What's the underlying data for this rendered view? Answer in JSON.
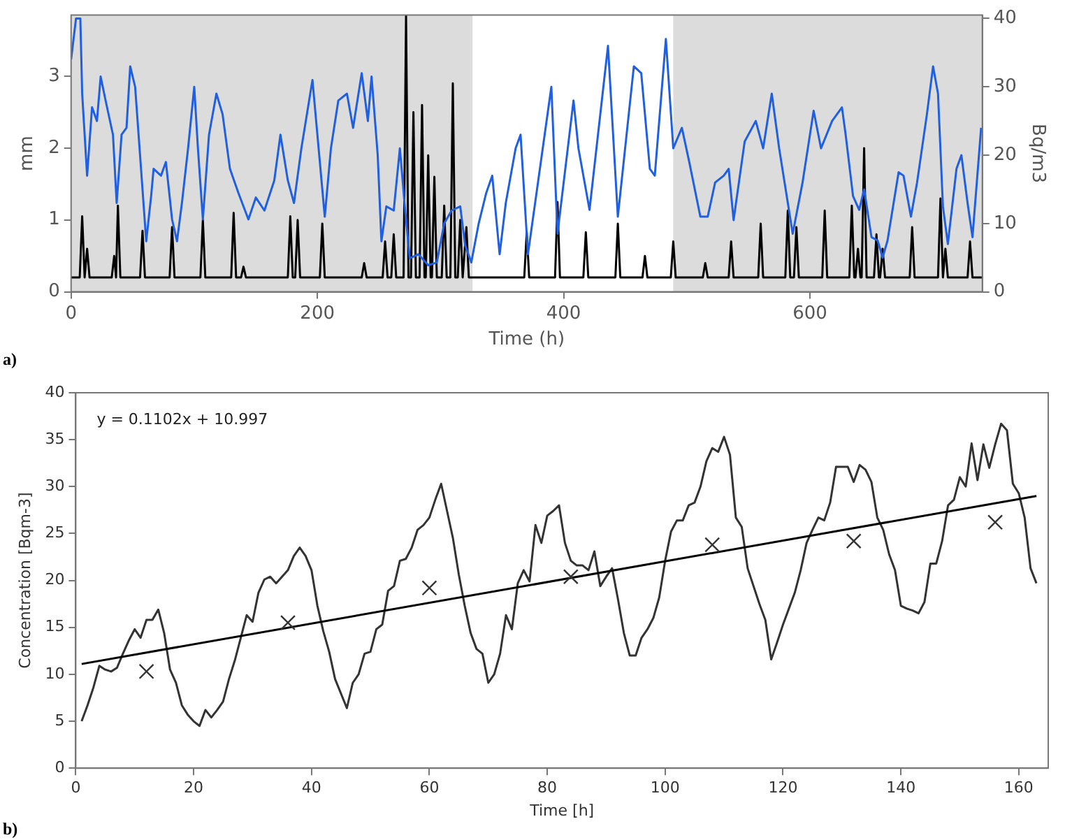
{
  "chart_data": [
    {
      "type": "line",
      "xlabel": "Time (h)",
      "ylabel": "mm",
      "y2label": "Bq/m3",
      "annotations": [
        "a)"
      ],
      "marker": "none",
      "xlim": [
        0,
        740
      ],
      "xticks": [
        0,
        200,
        400,
        600
      ],
      "ylim": [
        0,
        3.85
      ],
      "yticks": [
        0,
        1,
        2,
        3
      ],
      "y2lim": [
        0,
        40.5
      ],
      "y2ticks": [
        0,
        10,
        20,
        30,
        40
      ],
      "bands": [
        {
          "axis": "x",
          "from": 0,
          "to": 326,
          "color": "#dcdcdc"
        },
        {
          "axis": "x",
          "from": 489,
          "to": 740,
          "color": "#dcdcdc"
        }
      ],
      "series": [
        {
          "color": "#000000",
          "axis": "y",
          "x": [
            0,
            7,
            9,
            11,
            13,
            15,
            33,
            35,
            36.5,
            38,
            40,
            56,
            58,
            60,
            80,
            82,
            84,
            105,
            107,
            109,
            130,
            132,
            134,
            138,
            140,
            142,
            176,
            178,
            180,
            182,
            184,
            186,
            202,
            204,
            206,
            236,
            238,
            240,
            253,
            255,
            257,
            260,
            262,
            264,
            270,
            272,
            274,
            276,
            278,
            280,
            283,
            285,
            287,
            288,
            290,
            292,
            293,
            295,
            297,
            301,
            303,
            305,
            308,
            310,
            312,
            314,
            316,
            318,
            319,
            321,
            323,
            368,
            370,
            372,
            393,
            395,
            397,
            416,
            418,
            420,
            442,
            444,
            446,
            464,
            466,
            468,
            487,
            489,
            491,
            513,
            515,
            517,
            534,
            536,
            538,
            558,
            560,
            562,
            580,
            582,
            584,
            587,
            589,
            591,
            610,
            612,
            614,
            632,
            634,
            636,
            637,
            639,
            641,
            642,
            644,
            646,
            652,
            654,
            656,
            657,
            659,
            661,
            681,
            683,
            685,
            704,
            706,
            708,
            710,
            712,
            728,
            730,
            732,
            740
          ],
          "values": [
            0.2,
            0.2,
            1.05,
            0.2,
            0.6,
            0.2,
            0.2,
            0.5,
            0.2,
            1.2,
            0.2,
            0.2,
            0.85,
            0.2,
            0.2,
            0.9,
            0.2,
            0.2,
            1,
            0.2,
            0.2,
            1.1,
            0.2,
            0.2,
            0.35,
            0.2,
            0.2,
            1.05,
            0.2,
            0.2,
            1,
            0.2,
            0.2,
            0.95,
            0.2,
            0.2,
            0.4,
            0.2,
            0.2,
            0.7,
            0.2,
            0.2,
            0.8,
            0.2,
            0.2,
            3.85,
            0.2,
            0.2,
            2.5,
            0.2,
            0.2,
            2.6,
            0.2,
            0.2,
            1.9,
            0.2,
            0.2,
            1.6,
            0.2,
            0.2,
            1.2,
            0.2,
            0.2,
            2.9,
            0.2,
            0.2,
            1,
            0.2,
            0.2,
            0.9,
            0.2,
            0.2,
            0.83,
            0.2,
            0.2,
            1.25,
            0.2,
            0.2,
            0.83,
            0.2,
            0.2,
            0.95,
            0.2,
            0.2,
            0.5,
            0.2,
            0.2,
            0.7,
            0.2,
            0.2,
            0.4,
            0.2,
            0.2,
            0.7,
            0.2,
            0.2,
            0.95,
            0.2,
            0.2,
            1.13,
            0.2,
            0.2,
            0.9,
            0.2,
            0.2,
            1.13,
            0.2,
            0.2,
            1.2,
            0.2,
            0.2,
            0.6,
            0.2,
            0.2,
            2,
            0.2,
            0.2,
            0.8,
            0.2,
            0.2,
            0.6,
            0.2,
            0.2,
            0.9,
            0.2,
            0.2,
            1.3,
            0.2,
            0.6,
            0.2,
            0.2,
            0.7,
            0.2,
            0.2
          ]
        },
        {
          "color": "#1f5fe0",
          "axis": "y2",
          "x": [
            0,
            4,
            7.5,
            9,
            13,
            17,
            21,
            24,
            28,
            34,
            37,
            41,
            45,
            48,
            52,
            56,
            61,
            65,
            67,
            73,
            77,
            82,
            86,
            90,
            95,
            100,
            103,
            107,
            112,
            118,
            123,
            129,
            136,
            144,
            150,
            157,
            165,
            170,
            176,
            181,
            187,
            196,
            200,
            206,
            211,
            217,
            224,
            229,
            236,
            241,
            244,
            249,
            252,
            256,
            262,
            267,
            271,
            275,
            282,
            290,
            297,
            303,
            309,
            316,
            320,
            325,
            331,
            337,
            342,
            348,
            353,
            361,
            365,
            371,
            390,
            395,
            408,
            412,
            421,
            436,
            444,
            457,
            463,
            470,
            474,
            483,
            489,
            496,
            502,
            511,
            517,
            523,
            530,
            534,
            538,
            547,
            556,
            562,
            569,
            575,
            586,
            594,
            603,
            609,
            618,
            626,
            629,
            635,
            640,
            644,
            650,
            655,
            659,
            663,
            672,
            676,
            682,
            687,
            695,
            700,
            704,
            708,
            712,
            719,
            723,
            728,
            732,
            739
          ],
          "values": [
            34,
            40,
            40,
            29,
            17,
            27,
            25,
            31.5,
            28,
            23,
            13,
            23,
            24,
            33,
            30,
            20,
            7.4,
            14,
            18,
            17,
            19,
            10.6,
            7.4,
            13,
            21,
            30,
            21,
            10.6,
            23,
            29,
            26,
            18,
            14.4,
            10.6,
            13.8,
            11.9,
            16.3,
            23,
            16.3,
            13,
            21,
            31,
            23,
            11,
            21,
            28,
            29,
            24,
            32,
            25,
            31.5,
            20,
            7.4,
            12.5,
            11.9,
            21,
            12.5,
            4.9,
            5.5,
            3.9,
            4.3,
            10,
            11.9,
            12.5,
            6.8,
            4.3,
            10,
            14.4,
            17,
            5.5,
            13,
            21,
            23,
            5.5,
            30,
            8.5,
            28,
            21,
            12,
            36,
            11,
            33,
            32,
            18,
            17,
            37,
            21,
            24,
            19,
            11,
            11,
            16,
            17,
            18,
            10.5,
            22,
            25,
            21,
            29,
            21,
            8.5,
            16,
            26.5,
            21,
            25,
            27,
            23,
            14,
            12,
            15,
            8,
            7.5,
            5,
            7.5,
            17.5,
            17,
            11,
            16,
            26,
            33,
            29,
            12.5,
            7,
            18,
            20,
            13,
            8,
            24
          ]
        }
      ]
    },
    {
      "type": "line",
      "xlabel": "Time [h]",
      "ylabel": "Concentration [Bqm-3]",
      "annotations": [
        "y = 0.1102x + 10.997",
        "b)"
      ],
      "marker": "none",
      "xlim": [
        0,
        165
      ],
      "xticks": [
        0,
        20,
        40,
        60,
        80,
        100,
        120,
        140,
        160
      ],
      "ylim": [
        0,
        40
      ],
      "yticks": [
        0,
        5,
        10,
        15,
        20,
        25,
        30,
        35,
        40
      ],
      "series": [
        {
          "color": "#333333",
          "x": [
            1,
            2,
            3,
            4,
            5,
            6,
            7,
            8,
            9,
            10,
            11,
            12,
            13,
            14,
            15,
            16,
            17,
            18,
            19,
            20,
            21,
            22,
            23,
            24,
            25,
            26,
            27,
            28,
            29,
            30,
            31,
            32,
            33,
            34,
            35,
            36,
            37,
            38,
            39,
            40,
            41,
            42,
            43,
            44,
            46,
            47,
            48,
            49,
            50,
            51,
            52,
            53,
            54,
            55,
            56,
            57,
            58,
            59,
            60,
            61,
            62,
            63,
            64,
            65,
            66,
            67,
            68,
            69,
            70,
            71,
            72,
            73,
            74,
            75,
            76,
            77,
            78,
            79,
            80,
            81,
            82,
            83,
            84,
            85,
            86,
            87,
            88,
            89,
            90,
            91,
            92,
            93,
            94,
            95,
            96,
            97,
            98,
            99,
            100,
            101,
            102,
            103,
            104,
            105,
            106,
            107,
            108,
            109,
            110,
            111,
            112,
            113,
            114,
            115,
            116,
            117,
            118,
            119,
            120,
            121,
            122,
            123,
            124,
            125,
            126,
            127,
            128,
            129,
            130,
            131,
            132,
            133,
            134,
            135,
            136,
            137,
            138,
            139,
            140,
            141,
            142,
            143,
            144,
            145,
            146,
            147,
            148,
            149,
            150,
            151,
            152,
            153,
            154,
            155,
            156,
            157,
            158,
            159,
            160,
            161,
            162,
            163
          ],
          "values": [
            5,
            6.7,
            8.6,
            10.9,
            10.5,
            10.3,
            10.7,
            12.2,
            13.6,
            14.8,
            13.9,
            15.8,
            15.8,
            16.9,
            14.4,
            10.5,
            9.1,
            6.7,
            5.7,
            5,
            4.5,
            6.2,
            5.4,
            6.2,
            7.1,
            9.5,
            11.5,
            13.9,
            16.3,
            15.6,
            18.7,
            20.1,
            20.4,
            19.7,
            20.4,
            21.1,
            22.6,
            23.5,
            22.6,
            21.1,
            17.3,
            14.6,
            12.4,
            9.5,
            6.4,
            9.1,
            10,
            12.2,
            12.4,
            14.8,
            15.3,
            18.9,
            19.4,
            22.1,
            22.3,
            23.5,
            25.4,
            25.9,
            26.7,
            28.6,
            30.3,
            27.4,
            24.5,
            20.6,
            17.3,
            14.4,
            12.7,
            12.2,
            9.1,
            10,
            12.2,
            16.3,
            14.8,
            19.7,
            21.1,
            19.9,
            25.9,
            24,
            26.9,
            27.4,
            28,
            24,
            22.1,
            21.6,
            21.6,
            21.1,
            23.1,
            19.4,
            20.4,
            21.3,
            18,
            14.4,
            12,
            12,
            13.9,
            14.8,
            16,
            18.2,
            22.1,
            25.2,
            26.4,
            26.4,
            28,
            28.3,
            30,
            32.7,
            34.1,
            33.7,
            35.3,
            33.4,
            26.7,
            25.7,
            21.3,
            19.4,
            17.5,
            15.8,
            11.6,
            13.4,
            15.3,
            17,
            18.7,
            21.1,
            24,
            25.4,
            26.7,
            26.4,
            28.3,
            32.1,
            32.1,
            32.1,
            30.5,
            32.3,
            31.8,
            30.5,
            26.7,
            25.4,
            22.8,
            21.1,
            17.3,
            17,
            16.8,
            16.5,
            17.7,
            21.8,
            21.8,
            24.2,
            28,
            28.6,
            31,
            30,
            34.6,
            30.7,
            34.5,
            32,
            34.5,
            36.7,
            36,
            30.3,
            29.3,
            26.7,
            21.3,
            19.7
          ]
        },
        {
          "color": "#000000",
          "x": [
            1,
            163
          ],
          "values": [
            11.1,
            29
          ]
        },
        {
          "type": "scatter",
          "marker": "cross",
          "color": "#333333",
          "x": [
            12,
            36,
            60,
            84,
            108,
            132,
            156
          ],
          "values": [
            10.3,
            15.5,
            19.2,
            20.4,
            23.8,
            24.2,
            26.2
          ]
        }
      ]
    }
  ]
}
